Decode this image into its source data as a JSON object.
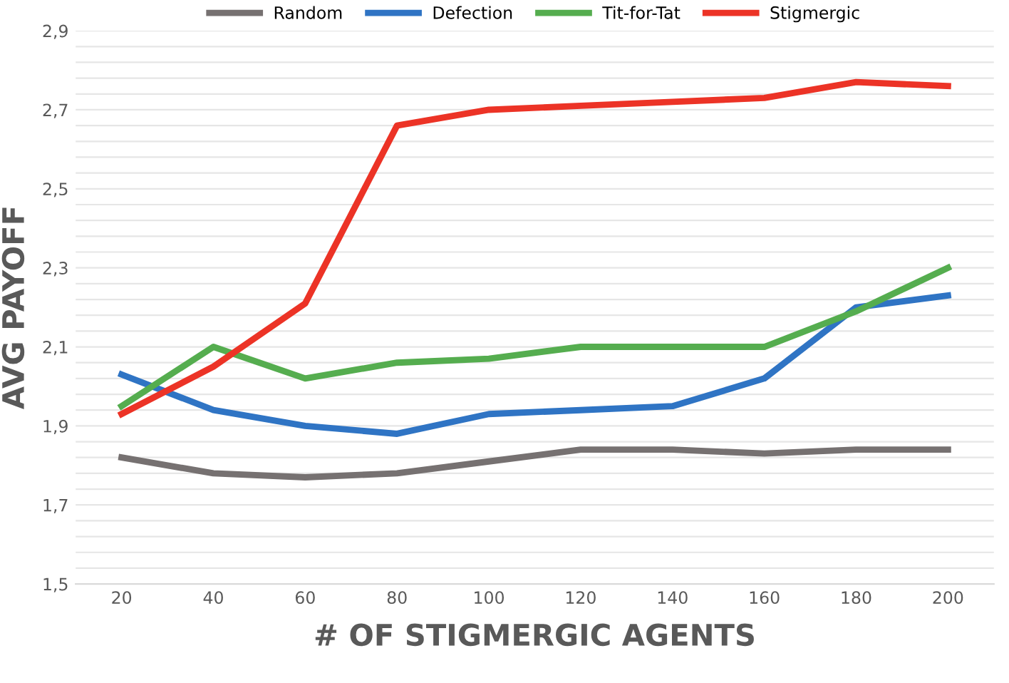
{
  "chart_data": {
    "type": "line",
    "xlabel": "# OF STIGMERGIC AGENTS",
    "ylabel": "AVG PAYOFF",
    "categories": [
      "20",
      "40",
      "60",
      "80",
      "100",
      "120",
      "140",
      "160",
      "180",
      "200"
    ],
    "series": [
      {
        "name": "Random",
        "color": "#767171",
        "values": [
          1.82,
          1.78,
          1.77,
          1.78,
          1.81,
          1.84,
          1.84,
          1.83,
          1.84,
          1.84
        ]
      },
      {
        "name": "Defection",
        "color": "#2f74c4",
        "values": [
          2.03,
          1.94,
          1.9,
          1.88,
          1.93,
          1.94,
          1.95,
          2.02,
          2.2,
          2.23
        ]
      },
      {
        "name": "Tit-for-Tat",
        "color": "#55ad4f",
        "values": [
          1.95,
          2.1,
          2.02,
          2.06,
          2.07,
          2.1,
          2.1,
          2.1,
          2.19,
          2.3
        ]
      },
      {
        "name": "Stigmergic",
        "color": "#ec3326",
        "values": [
          1.93,
          2.05,
          2.21,
          2.66,
          2.7,
          2.71,
          2.72,
          2.73,
          2.77,
          2.76
        ]
      }
    ],
    "ylim": [
      1.5,
      2.9
    ],
    "yticks": [
      {
        "value": 1.5,
        "label": "1,5"
      },
      {
        "value": 1.54,
        "label": null
      },
      {
        "value": 1.58,
        "label": null
      },
      {
        "value": 1.62,
        "label": null
      },
      {
        "value": 1.66,
        "label": null
      },
      {
        "value": 1.7,
        "label": "1,7"
      },
      {
        "value": 1.74,
        "label": null
      },
      {
        "value": 1.78,
        "label": null
      },
      {
        "value": 1.82,
        "label": null
      },
      {
        "value": 1.86,
        "label": null
      },
      {
        "value": 1.9,
        "label": "1,9"
      },
      {
        "value": 1.94,
        "label": null
      },
      {
        "value": 1.98,
        "label": null
      },
      {
        "value": 2.02,
        "label": null
      },
      {
        "value": 2.06,
        "label": null
      },
      {
        "value": 2.1,
        "label": "2,1"
      },
      {
        "value": 2.14,
        "label": null
      },
      {
        "value": 2.18,
        "label": null
      },
      {
        "value": 2.22,
        "label": null
      },
      {
        "value": 2.26,
        "label": null
      },
      {
        "value": 2.3,
        "label": "2,3"
      },
      {
        "value": 2.34,
        "label": null
      },
      {
        "value": 2.38,
        "label": null
      },
      {
        "value": 2.42,
        "label": null
      },
      {
        "value": 2.46,
        "label": null
      },
      {
        "value": 2.5,
        "label": "2,5"
      },
      {
        "value": 2.54,
        "label": null
      },
      {
        "value": 2.58,
        "label": null
      },
      {
        "value": 2.62,
        "label": null
      },
      {
        "value": 2.66,
        "label": null
      },
      {
        "value": 2.7,
        "label": "2,7"
      },
      {
        "value": 2.74,
        "label": null
      },
      {
        "value": 2.78,
        "label": null
      },
      {
        "value": 2.82,
        "label": null
      },
      {
        "value": 2.86,
        "label": null
      },
      {
        "value": 2.9,
        "label": "2,9"
      }
    ],
    "grid": "y",
    "legend": "top",
    "marker": "none",
    "line_style": "solid"
  }
}
